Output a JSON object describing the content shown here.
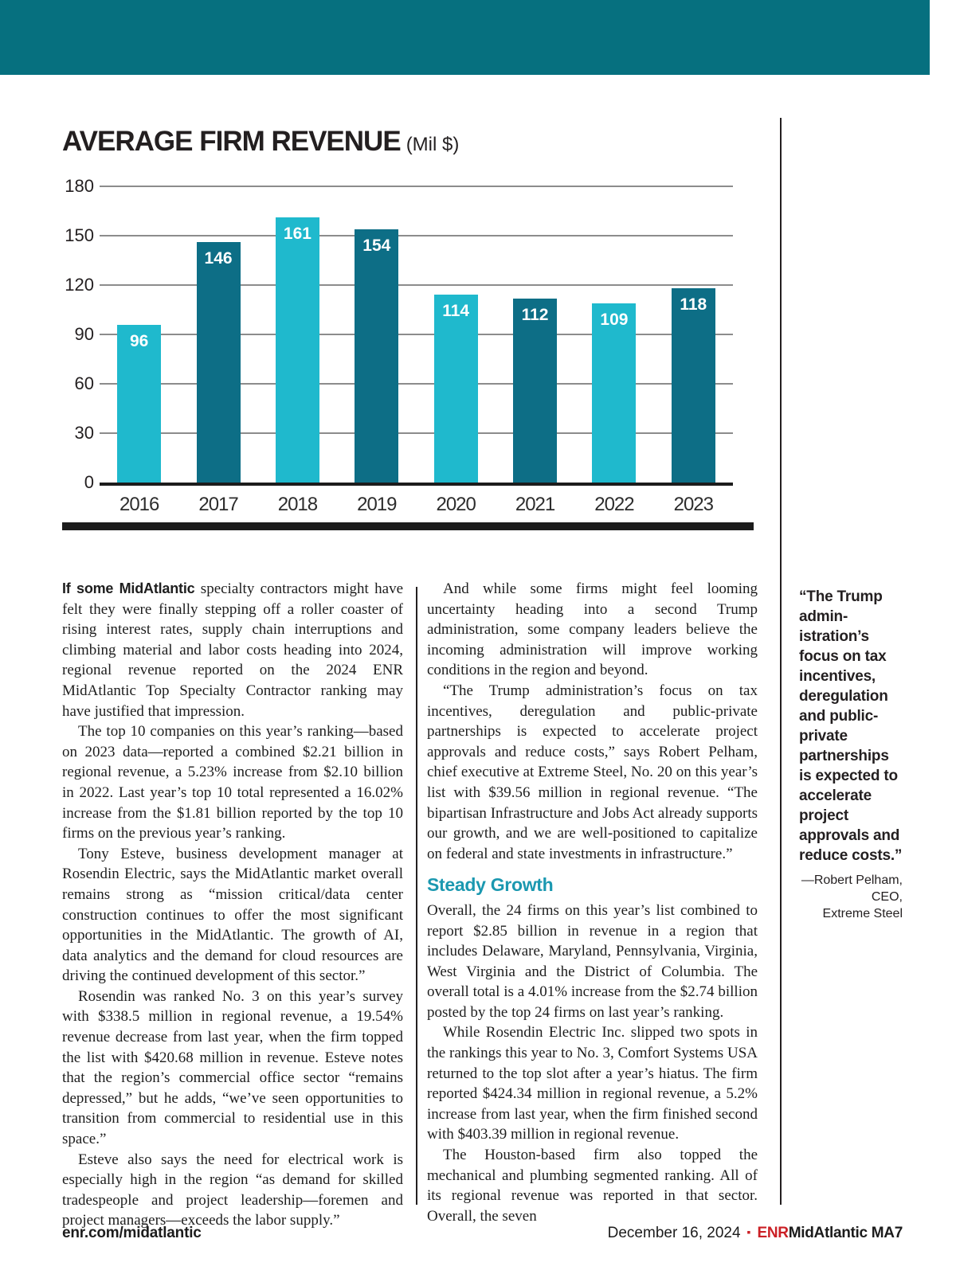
{
  "banner": {
    "color": "#06707f"
  },
  "chart_data": {
    "type": "bar",
    "title": "AVERAGE FIRM REVENUE",
    "subtitle": "(Mil $)",
    "categories": [
      "2016",
      "2017",
      "2018",
      "2019",
      "2020",
      "2021",
      "2022",
      "2023"
    ],
    "values": [
      96,
      146,
      161,
      154,
      114,
      112,
      109,
      118
    ],
    "xlabel": "",
    "ylabel": "",
    "ylim": [
      0,
      180
    ],
    "yticks": [
      0,
      30,
      60,
      90,
      120,
      150,
      180
    ],
    "grid": true,
    "legend": "none",
    "bar_colors_alternating": [
      "#1fb9cd",
      "#0d6e86"
    ],
    "value_label_color": "#ffffff"
  },
  "article": {
    "col1_lead": "If some MidAtlantic",
    "col1": [
      " specialty contractors might have felt they were finally stepping off a roller coaster of rising interest rates, supply chain interruptions and climbing material and labor costs heading into 2024, regional revenue reported on the 2024 ENR MidAtlantic Top Specialty Contractor ranking may have justified that impression.",
      "The top 10 companies on this year’s ranking—based on 2023 data—reported a combined $2.21 billion in regional revenue, a 5.23% increase from $2.10 billion in 2022. Last year’s top 10 total represented a 16.02% increase from the $1.81 billion reported by the top 10 firms on the previous year’s ranking.",
      "Tony Esteve, business development manager at Rosendin Electric, says the MidAtlantic market overall remains strong as “mission critical/data center construction continues to offer the most significant opportunities in the MidAtlantic. The growth of AI, data analytics and the demand for cloud resources are driving the continued development of this sector.”",
      "Rosendin was ranked No. 3 on this year’s survey with $338.5 million in regional revenue, a 19.54% revenue decrease from last year, when the firm topped the list with $420.68 million in revenue. Esteve notes that the region’s commercial office sector “remains depressed,” but he adds, “we’ve seen opportunities to transition from commercial to residential use in this space.”",
      "Esteve also says the need for electrical work is especially high in the region “as demand for skilled tradespeople and project leadership—foremen and project managers—exceeds the labor supply.”"
    ],
    "col2_before_subhead": [
      "And while some firms might feel looming uncertainty heading into a second Trump administration, some company leaders believe the incoming administration will improve working conditions in the region and beyond.",
      "“The Trump administration’s focus on tax incentives, deregulation and public-private partnerships is expected to accelerate project approvals and reduce costs,” says Robert Pelham, chief executive at Extreme Steel, No. 20 on this year’s list with $39.56 million in regional revenue. “The bipartisan Infrastructure and Jobs Act already supports our growth, and we are well-positioned to capitalize on federal and state investments in infrastructure.”"
    ],
    "subhead": "Steady Growth",
    "subhead_color": "#1b98b0",
    "col2_after_subhead": [
      "Overall, the 24 firms on this year’s list combined to report $2.85 billion in revenue in a region that includes Delaware, Maryland, Pennsylvania, Virginia, West Virginia and the District of Columbia. The overall total is a 4.01% increase from the $2.74 billion posted by the top 24 firms on last year’s ranking.",
      "While Rosendin Electric Inc. slipped two spots in the rankings this year to No. 3, Comfort Systems USA returned to the top slot after a year’s hiatus. The firm reported $424.34 million in regional revenue, a 5.2% increase from last year, when the firm finished second with $403.39 million in regional revenue.",
      "The Houston-based firm also topped the mechanical and plumbing segmented ranking. All of its regional revenue was reported in that sector. Overall, the seven"
    ]
  },
  "pullquote": {
    "text": "“The Trump admin­istration’s focus on tax incentives, deregulation and public-private partnerships is expected to accelerate project approvals and reduce costs.”",
    "attribution": [
      "—Robert Pelham,",
      "CEO,",
      "Extreme Steel"
    ]
  },
  "footer": {
    "site": "enr.com/midatlantic",
    "date": "December 16, 2024",
    "square": "▪",
    "brand_red": "ENR",
    "brand_black": "MidAtlantic MA7",
    "red_color": "#cb2026"
  }
}
